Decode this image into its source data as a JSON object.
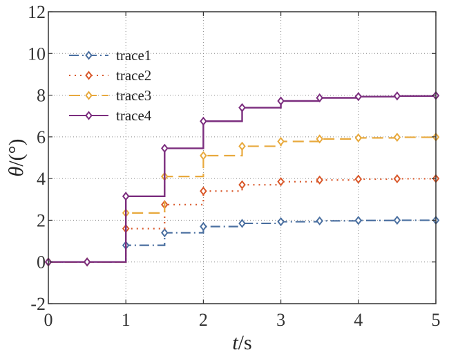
{
  "chart_data": {
    "type": "line",
    "step": true,
    "xlabel": {
      "italic": "t",
      "rest": "/s"
    },
    "ylabel": {
      "italic": "θ",
      "rest": "/(°)"
    },
    "xlim": [
      0,
      5
    ],
    "ylim": [
      -2,
      12
    ],
    "xticks": [
      0,
      1,
      2,
      3,
      4,
      5
    ],
    "yticks": [
      -2,
      0,
      2,
      4,
      6,
      8,
      10,
      12
    ],
    "grid": true,
    "legend_position": "top-left",
    "x": [
      0,
      0.5,
      1,
      1.5,
      2,
      2.5,
      3,
      3.5,
      4,
      4.5,
      5
    ],
    "series": [
      {
        "name": "trace1",
        "color": "#4a6fa0",
        "dash": "14 5 2 5",
        "marker": "diamond-open",
        "values": [
          0,
          0,
          0.8,
          1.4,
          1.7,
          1.85,
          1.93,
          1.97,
          1.99,
          2.0,
          2.0
        ]
      },
      {
        "name": "trace2",
        "color": "#d9582a",
        "dash": "2 6",
        "marker": "diamond-open",
        "values": [
          0,
          0,
          1.6,
          2.75,
          3.4,
          3.7,
          3.85,
          3.93,
          3.97,
          3.99,
          4.0
        ]
      },
      {
        "name": "trace3",
        "color": "#e8a93d",
        "dash": "16 8",
        "marker": "diamond-open",
        "values": [
          0,
          0,
          2.35,
          4.1,
          5.1,
          5.55,
          5.78,
          5.9,
          5.95,
          5.98,
          5.99
        ]
      },
      {
        "name": "trace4",
        "color": "#7b2d7e",
        "dash": "",
        "marker": "diamond-open",
        "values": [
          0,
          0,
          3.15,
          5.45,
          6.75,
          7.4,
          7.72,
          7.87,
          7.93,
          7.96,
          7.98
        ]
      }
    ]
  }
}
